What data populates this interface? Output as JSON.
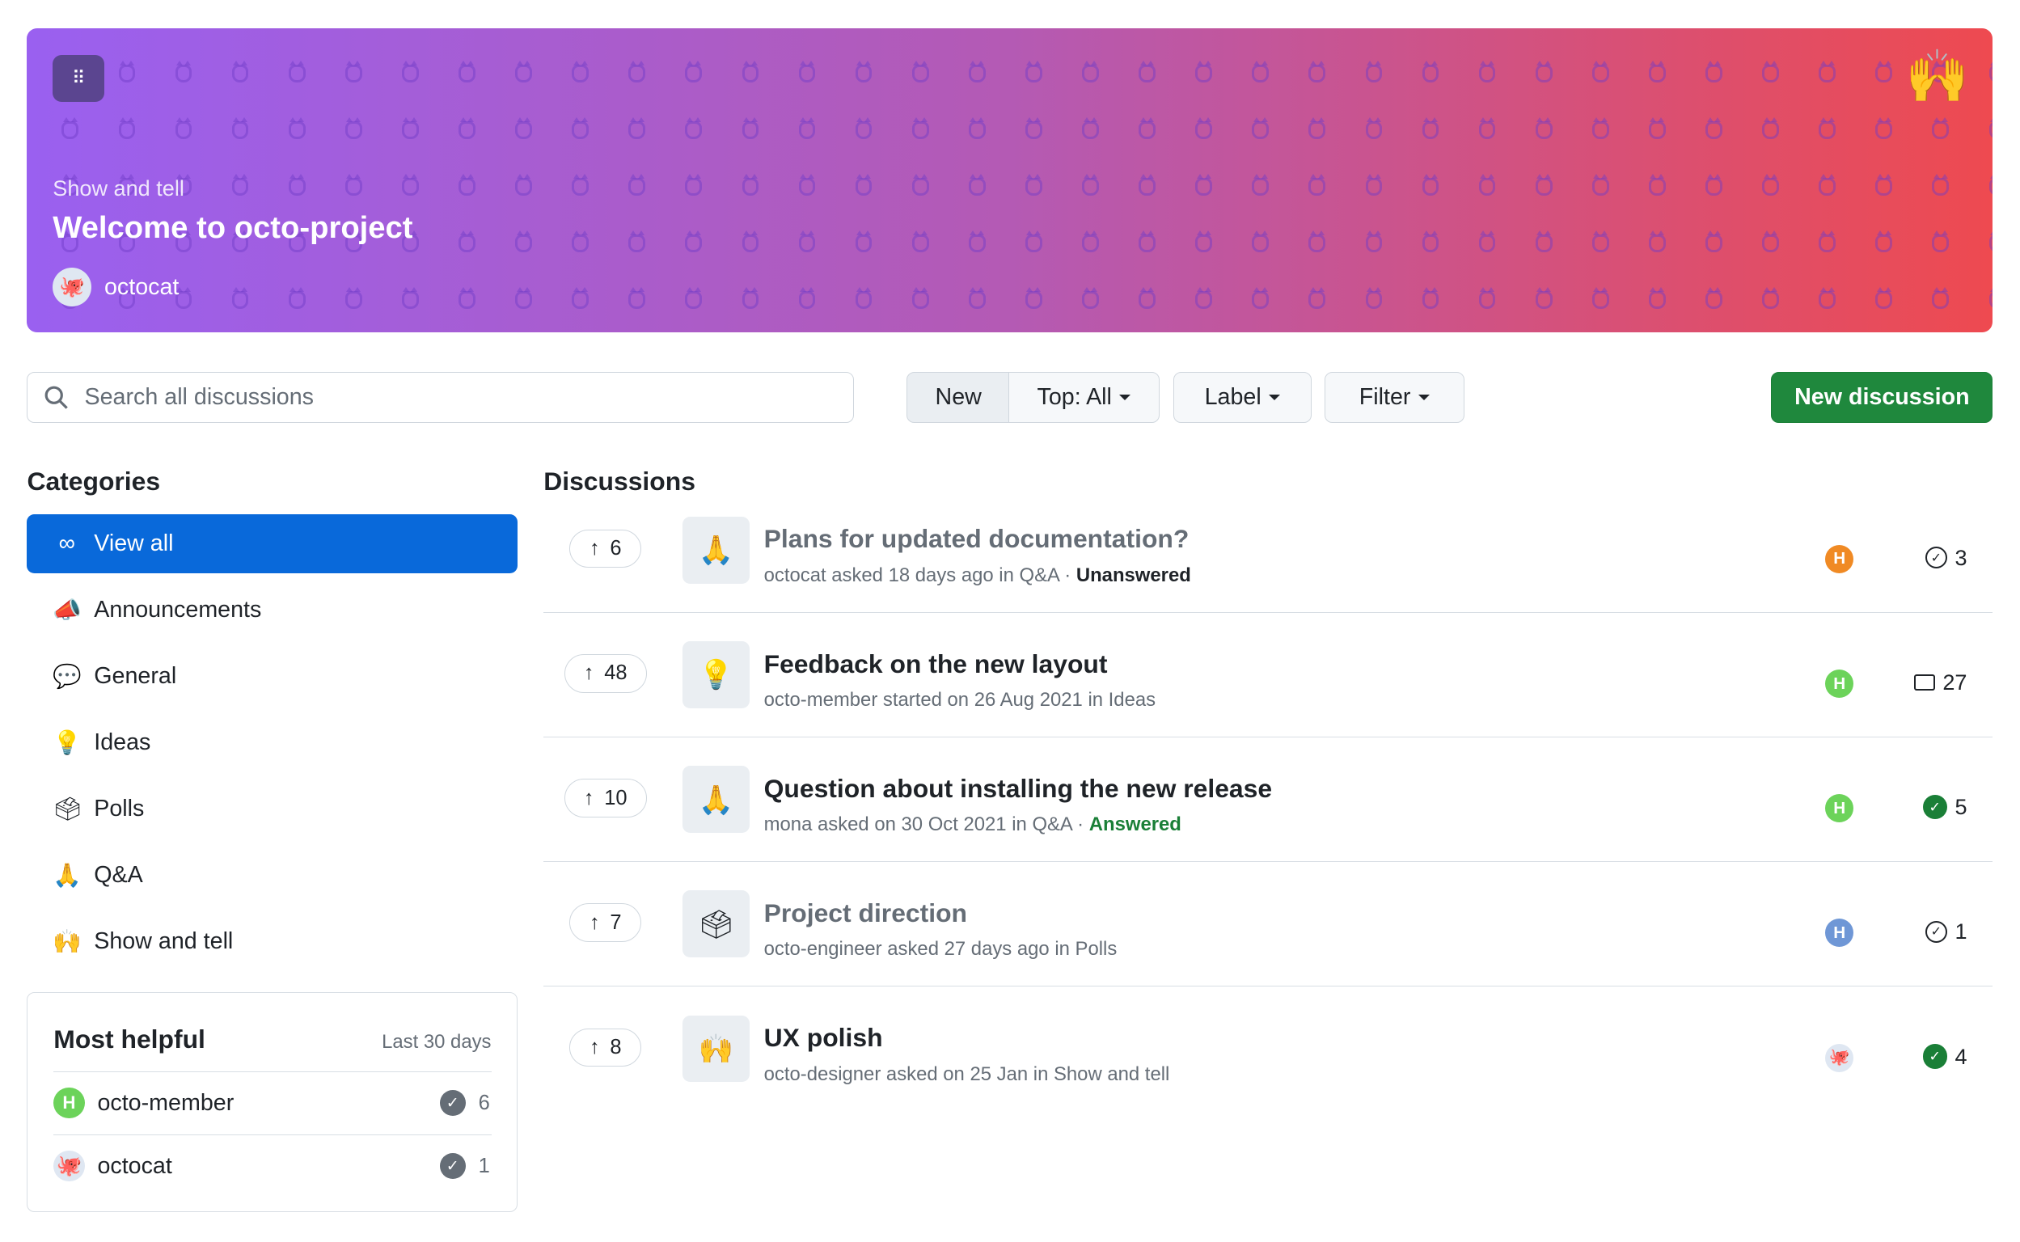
{
  "banner": {
    "category": "Show and tell",
    "title": "Welcome to octo-project",
    "author": "octocat",
    "emoji": "🙌",
    "gradient": [
      "#9a60f0",
      "#ee4a50"
    ]
  },
  "toolbar": {
    "search_placeholder": "Search all discussions",
    "sort_new": "New",
    "sort_top": "Top: All",
    "label": "Label",
    "filter": "Filter",
    "new_discussion": "New discussion"
  },
  "categories": {
    "heading": "Categories",
    "items": [
      {
        "label": "View all",
        "icon": "∞",
        "selected": true
      },
      {
        "label": "Announcements",
        "icon": "📣"
      },
      {
        "label": "General",
        "icon": "💬"
      },
      {
        "label": "Ideas",
        "icon": "💡"
      },
      {
        "label": "Polls",
        "icon": "🗳"
      },
      {
        "label": "Q&A",
        "icon": "🙏"
      },
      {
        "label": "Show and tell",
        "icon": "🙌"
      }
    ]
  },
  "most_helpful": {
    "title": "Most helpful",
    "period": "Last 30 days",
    "users": [
      {
        "name": "octo-member",
        "count": "6"
      },
      {
        "name": "octocat",
        "count": "1"
      }
    ]
  },
  "discussions": {
    "heading": "Discussions",
    "items": [
      {
        "votes": "6",
        "emoji": "🙏",
        "title": "Plans for updated documentation?",
        "meta": "octocat asked 18 days ago in Q&A · ",
        "status": "Unanswered",
        "visited": true,
        "count": "3",
        "count_icon": "answer-outline",
        "avatar_color": "#f08a24"
      },
      {
        "votes": "48",
        "emoji": "💡",
        "title": "Feedback on the new layout",
        "meta": "octo-member started on 26 Aug 2021 in Ideas",
        "status": "",
        "visited": false,
        "count": "27",
        "count_icon": "comment",
        "avatar_color": "#6cd35a"
      },
      {
        "votes": "10",
        "emoji": "🙏",
        "title": "Question about installing the new release",
        "meta": "mona asked on 30 Oct 2021 in Q&A · ",
        "status": "Answered",
        "visited": false,
        "count": "5",
        "count_icon": "answered",
        "avatar_color": "#6cd35a"
      },
      {
        "votes": "7",
        "emoji": "🗳",
        "title": "Project direction",
        "meta": "octo-engineer asked 27 days ago in Polls",
        "status": "",
        "visited": true,
        "count": "1",
        "count_icon": "answer-outline",
        "avatar_color": "#6f97d6"
      },
      {
        "votes": "8",
        "emoji": "🙌",
        "title": "UX polish",
        "meta": "octo-designer asked on 25 Jan in Show and tell",
        "status": "",
        "visited": false,
        "count": "4",
        "count_icon": "answered",
        "avatar_color": "#dfe7f2"
      }
    ]
  }
}
